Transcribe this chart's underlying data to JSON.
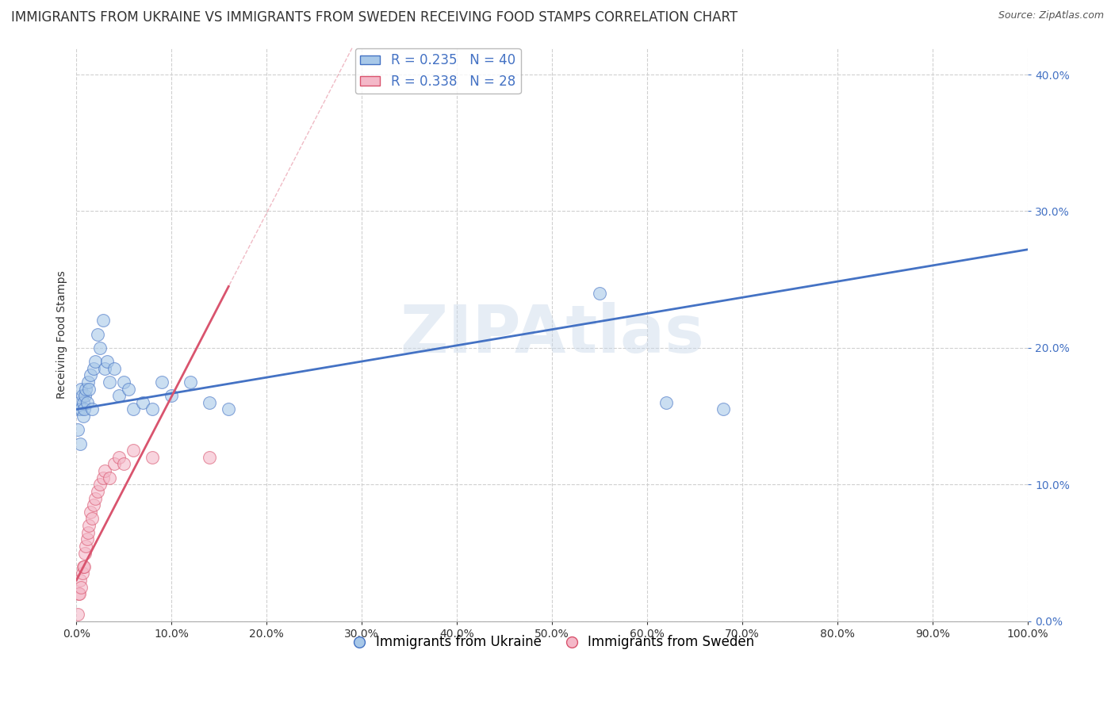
{
  "title": "IMMIGRANTS FROM UKRAINE VS IMMIGRANTS FROM SWEDEN RECEIVING FOOD STAMPS CORRELATION CHART",
  "source": "Source: ZipAtlas.com",
  "ylabel": "Receiving Food Stamps",
  "legend_ukraine": "Immigrants from Ukraine",
  "legend_sweden": "Immigrants from Sweden",
  "ukraine_R": 0.235,
  "ukraine_N": 40,
  "sweden_R": 0.338,
  "sweden_N": 28,
  "ukraine_color": "#a8c8e8",
  "sweden_color": "#f4b8c8",
  "ukraine_line_color": "#4472c4",
  "sweden_line_color": "#d9546e",
  "watermark": "ZIPAtlas",
  "xmin": 0.0,
  "xmax": 1.0,
  "ymin": 0.0,
  "ymax": 0.42,
  "ukraine_scatter_x": [
    0.001,
    0.002,
    0.003,
    0.004,
    0.005,
    0.005,
    0.006,
    0.007,
    0.007,
    0.008,
    0.009,
    0.01,
    0.011,
    0.012,
    0.013,
    0.015,
    0.016,
    0.018,
    0.02,
    0.022,
    0.025,
    0.028,
    0.03,
    0.032,
    0.035,
    0.04,
    0.045,
    0.05,
    0.055,
    0.06,
    0.07,
    0.08,
    0.09,
    0.1,
    0.12,
    0.14,
    0.16,
    0.55,
    0.62,
    0.68
  ],
  "ukraine_scatter_y": [
    0.14,
    0.155,
    0.16,
    0.13,
    0.155,
    0.17,
    0.165,
    0.15,
    0.16,
    0.155,
    0.165,
    0.17,
    0.16,
    0.175,
    0.17,
    0.18,
    0.155,
    0.185,
    0.19,
    0.21,
    0.2,
    0.22,
    0.185,
    0.19,
    0.175,
    0.185,
    0.165,
    0.175,
    0.17,
    0.155,
    0.16,
    0.155,
    0.175,
    0.165,
    0.175,
    0.16,
    0.155,
    0.24,
    0.16,
    0.155
  ],
  "sweden_scatter_x": [
    0.001,
    0.002,
    0.003,
    0.004,
    0.005,
    0.006,
    0.007,
    0.008,
    0.009,
    0.01,
    0.011,
    0.012,
    0.013,
    0.015,
    0.016,
    0.018,
    0.02,
    0.022,
    0.025,
    0.028,
    0.03,
    0.035,
    0.04,
    0.045,
    0.05,
    0.06,
    0.08,
    0.14
  ],
  "sweden_scatter_y": [
    0.005,
    0.02,
    0.02,
    0.03,
    0.025,
    0.035,
    0.04,
    0.04,
    0.05,
    0.055,
    0.06,
    0.065,
    0.07,
    0.08,
    0.075,
    0.085,
    0.09,
    0.095,
    0.1,
    0.105,
    0.11,
    0.105,
    0.115,
    0.12,
    0.115,
    0.125,
    0.12,
    0.12
  ],
  "background_color": "#ffffff",
  "grid_color": "#d0d0d0",
  "title_fontsize": 12,
  "axis_label_fontsize": 10,
  "tick_fontsize": 10,
  "legend_fontsize": 12
}
